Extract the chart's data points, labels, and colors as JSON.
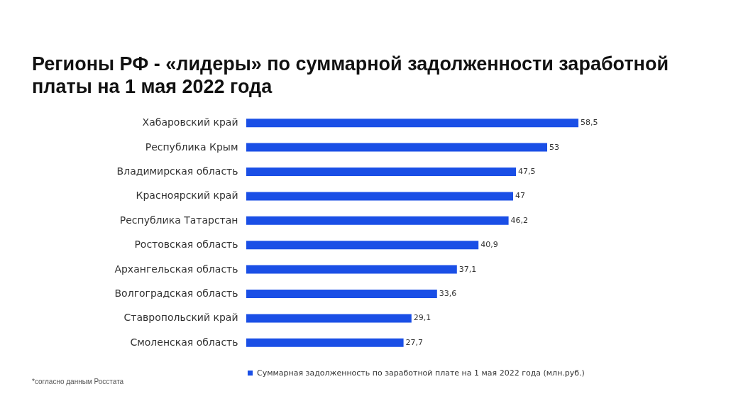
{
  "chart_data": {
    "type": "bar",
    "orientation": "horizontal",
    "title": "Регионы РФ - «лидеры» по суммарной задолженности заработной платы на 1 мая 2022 года",
    "categories": [
      "Хабаровский край",
      "Республика Крым",
      "Владимирская область",
      "Красноярский край",
      "Республика Татарстан",
      "Ростовская область",
      "Архангельская область",
      "Волгоградская область",
      "Ставропольский край",
      "Смоленская область"
    ],
    "series": [
      {
        "name": "Суммарная задолженность по заработной плате на 1 мая 2022 года (млн.руб.)",
        "color": "#1a4fe6",
        "values": [
          58.5,
          53,
          47.5,
          47,
          46.2,
          40.9,
          37.1,
          33.6,
          29.1,
          27.7
        ],
        "value_labels": [
          "58,5",
          "53",
          "47,5",
          "47",
          "46,2",
          "40,9",
          "37,1",
          "33,6",
          "29,1",
          "27,7"
        ]
      }
    ],
    "legend": "bottom",
    "annotations": [
      "*согласно данным Росстата"
    ]
  }
}
